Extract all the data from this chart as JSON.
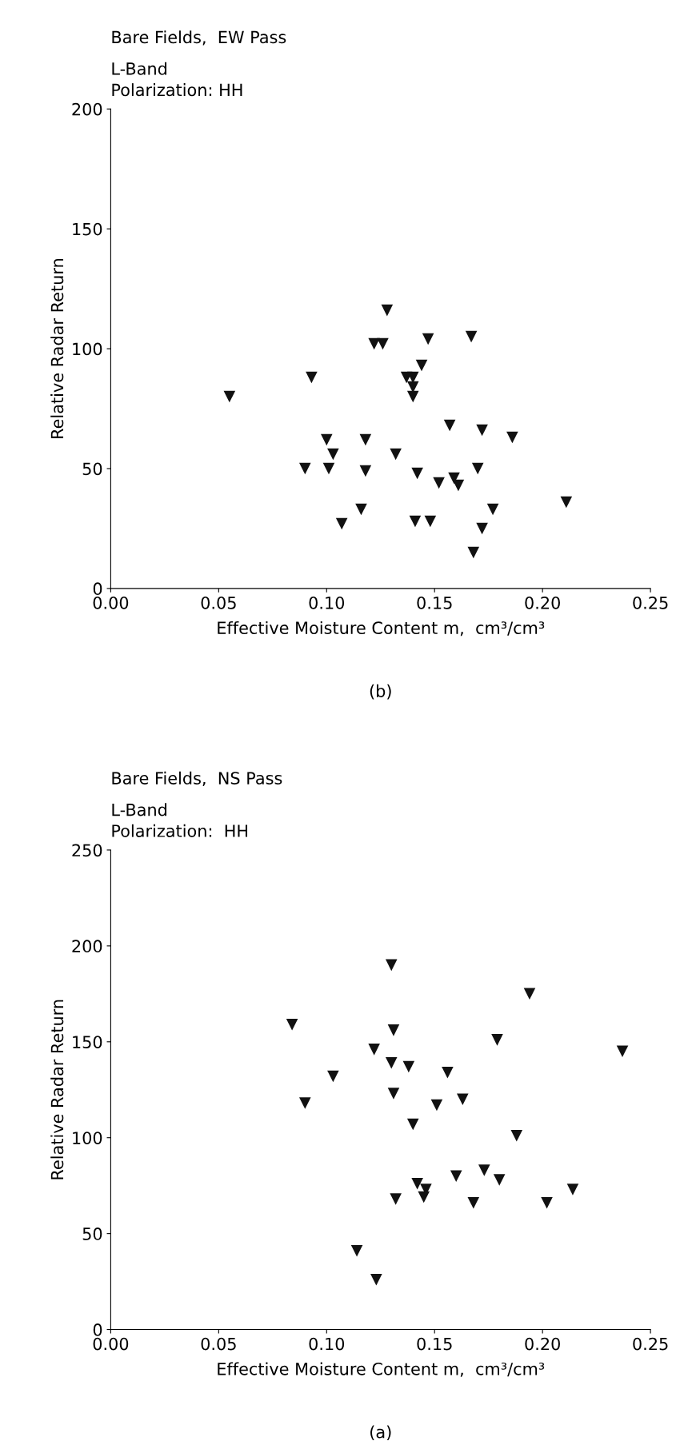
{
  "chart_data": [
    {
      "type": "scatter",
      "title": "Bare Fields,  EW Pass",
      "subtitle": "L-Band\nPolarization: HH",
      "xlabel": "Effective Moisture Content m,  cm³/cm³",
      "ylabel": "Relative Radar Return",
      "annotations": [
        "(b)"
      ],
      "color": "#111111",
      "marker": "triangle",
      "x": [
        0.211,
        0.186,
        0.177,
        0.172,
        0.17,
        0.172,
        0.168,
        0.167,
        0.157,
        0.159,
        0.161,
        0.152,
        0.148,
        0.147,
        0.144,
        0.142,
        0.141,
        0.14,
        0.14,
        0.14,
        0.137,
        0.132,
        0.128,
        0.126,
        0.122,
        0.118,
        0.118,
        0.116,
        0.107,
        0.1,
        0.103,
        0.101,
        0.093,
        0.09,
        0.055
      ],
      "values": [
        36,
        63,
        33,
        66,
        50,
        25,
        15,
        105,
        68,
        46,
        43,
        44,
        28,
        104,
        93,
        48,
        28,
        88,
        84,
        80,
        88,
        56,
        116,
        102,
        102,
        62,
        49,
        33,
        27,
        62,
        56,
        50,
        88,
        50,
        80
      ],
      "xlim": [
        0,
        0.25
      ],
      "xticks": [
        {
          "value": 0,
          "label": "0.00"
        },
        {
          "value": 0.05,
          "label": "0.05"
        },
        {
          "value": 0.1,
          "label": "0.10"
        },
        {
          "value": 0.15,
          "label": "0.15"
        },
        {
          "value": 0.2,
          "label": "0.20"
        },
        {
          "value": 0.25,
          "label": "0.25"
        }
      ],
      "ylim": [
        0,
        200
      ],
      "yticks": [
        0,
        50,
        100,
        150,
        200
      ]
    },
    {
      "type": "scatter",
      "title": "Bare Fields,  NS Pass",
      "subtitle": "L-Band\nPolarization:  HH",
      "xlabel": "Effective Moisture Content m,  cm³/cm³",
      "ylabel": "Relative Radar Return",
      "annotations": [
        "(a)"
      ],
      "color": "#111111",
      "marker": "triangle",
      "x": [
        0.237,
        0.214,
        0.202,
        0.194,
        0.188,
        0.179,
        0.18,
        0.173,
        0.168,
        0.163,
        0.16,
        0.156,
        0.151,
        0.14,
        0.138,
        0.142,
        0.146,
        0.145,
        0.131,
        0.13,
        0.13,
        0.131,
        0.132,
        0.122,
        0.123,
        0.114,
        0.103,
        0.09,
        0.084
      ],
      "values": [
        145,
        73,
        66,
        175,
        101,
        151,
        78,
        83,
        66,
        120,
        80,
        134,
        117,
        107,
        137,
        76,
        73,
        69,
        156,
        190,
        139,
        123,
        68,
        146,
        26,
        41,
        132,
        118,
        159
      ],
      "xlim": [
        0,
        0.25
      ],
      "xticks": [
        {
          "value": 0,
          "label": "0.00"
        },
        {
          "value": 0.05,
          "label": "0.05"
        },
        {
          "value": 0.1,
          "label": "0.10"
        },
        {
          "value": 0.15,
          "label": "0.15"
        },
        {
          "value": 0.2,
          "label": "0.20"
        },
        {
          "value": 0.25,
          "label": "0.25"
        }
      ],
      "ylim": [
        0,
        250
      ],
      "yticks": [
        0,
        50,
        100,
        150,
        200,
        250
      ]
    }
  ]
}
